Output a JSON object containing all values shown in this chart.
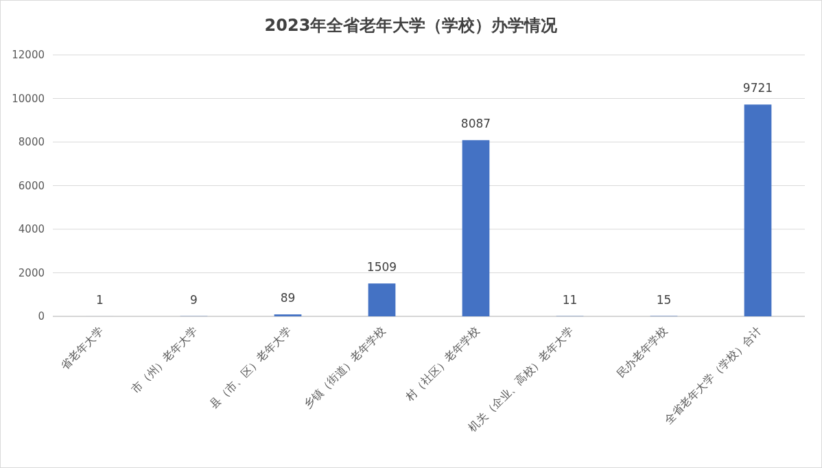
{
  "chart_data": {
    "type": "bar",
    "title": "2023年全省老年大学（学校）办学情况",
    "categories": [
      "省老年大学",
      "市（州）老年大学",
      "县（市、区）老年大学",
      "乡镇（街道）老年学校",
      "村（社区）老年学校",
      "机关（企业、高校）老年大学",
      "民办老年学校",
      "全省老年大学（学校）合计"
    ],
    "values": [
      1,
      9,
      89,
      1509,
      8087,
      11,
      15,
      9721
    ],
    "color": "#4472c4",
    "ylim": [
      0,
      12000
    ],
    "yticks": [
      0,
      2000,
      4000,
      6000,
      8000,
      10000,
      12000
    ],
    "grid": "y",
    "data_labels": true
  }
}
